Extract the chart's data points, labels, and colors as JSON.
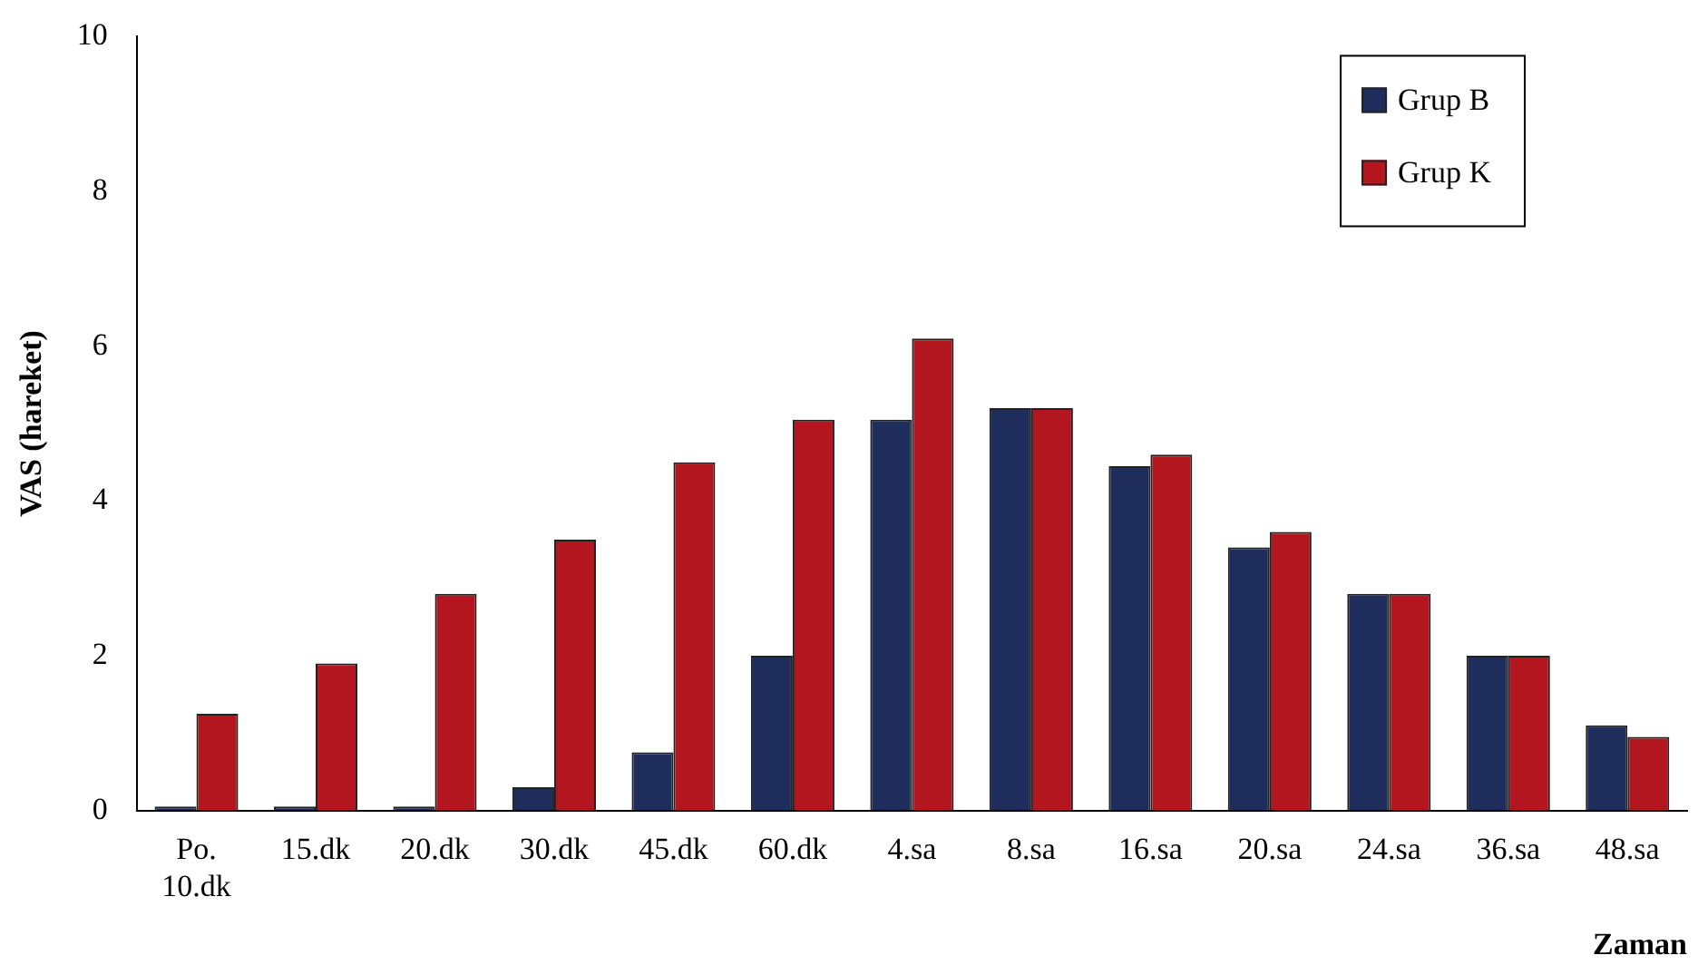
{
  "chart_data": {
    "type": "bar",
    "xlabel": "Zaman",
    "ylabel": "VAS (hareket)",
    "categories": [
      "Po.\n10.dk",
      "15.dk",
      "20.dk",
      "30.dk",
      "45.dk",
      "60.dk",
      "4.sa",
      "8.sa",
      "16.sa",
      "20.sa",
      "24.sa",
      "36.sa",
      "48.sa"
    ],
    "series": [
      {
        "name": "Grup B",
        "color": "#1f2d5c",
        "values": [
          0.05,
          0.05,
          0.05,
          0.3,
          0.75,
          2.0,
          5.05,
          5.2,
          4.45,
          3.4,
          2.8,
          2.0,
          1.1
        ]
      },
      {
        "name": "Grup K",
        "color": "#b3161f",
        "values": [
          1.25,
          1.9,
          2.8,
          3.5,
          4.5,
          5.05,
          6.1,
          5.2,
          4.6,
          3.6,
          2.8,
          2.0,
          0.95
        ]
      }
    ],
    "ylim": [
      0,
      10
    ],
    "yticks": [
      0,
      2,
      4,
      6,
      8,
      10
    ],
    "grid": false,
    "legend": "top right"
  }
}
